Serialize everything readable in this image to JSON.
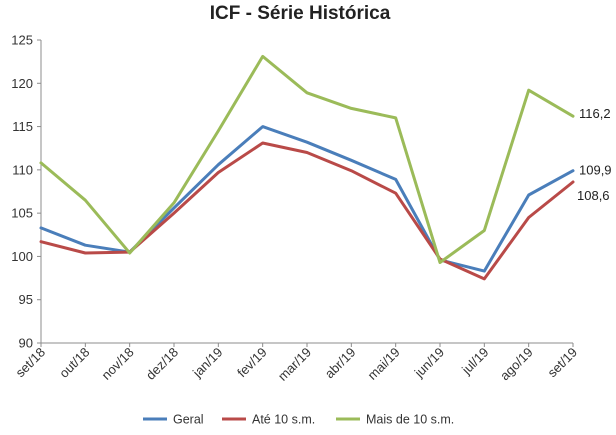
{
  "chart_data": {
    "type": "line",
    "title": "ICF - Série Histórica",
    "categories": [
      "set/18",
      "out/18",
      "nov/18",
      "dez/18",
      "jan/19",
      "fev/19",
      "mar/19",
      "abr/19",
      "mai/19",
      "jun/19",
      "jul/19",
      "ago/19",
      "set/19"
    ],
    "ylim": [
      90,
      125
    ],
    "yticks": [
      90,
      95,
      100,
      105,
      110,
      115,
      120,
      125
    ],
    "grid": false,
    "legend_position": "bottom",
    "series": [
      {
        "name": "Geral",
        "color": "#4a7eba",
        "values": [
          103.3,
          101.3,
          100.5,
          105.6,
          110.6,
          115.0,
          113.2,
          111.1,
          108.9,
          99.6,
          98.3,
          107.1,
          109.9
        ],
        "end_label": "109,9"
      },
      {
        "name": "Até 10 s.m.",
        "color": "#b94a48",
        "values": [
          101.7,
          100.4,
          100.5,
          105.0,
          109.7,
          113.1,
          112.0,
          109.9,
          107.3,
          99.7,
          97.4,
          104.5,
          108.6
        ],
        "end_label": "108,6"
      },
      {
        "name": "Mais de 10 s.m.",
        "color": "#9bbb59",
        "values": [
          110.8,
          106.5,
          100.4,
          106.2,
          114.5,
          123.1,
          118.9,
          117.1,
          116.0,
          99.3,
          103.0,
          119.2,
          116.2
        ],
        "end_label": "116,2"
      }
    ]
  }
}
